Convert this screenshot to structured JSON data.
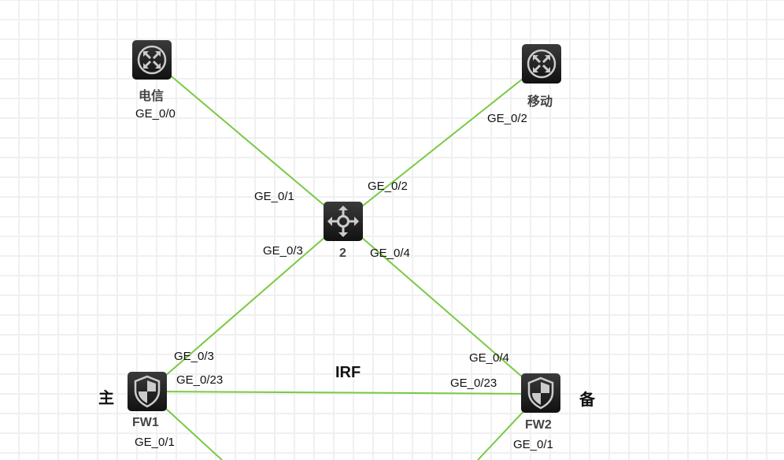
{
  "link_color": "#7ac943",
  "nodes": {
    "telecom": {
      "name": "电信",
      "icon": "router-icon"
    },
    "mobile": {
      "name": "移动",
      "icon": "router-icon"
    },
    "switch": {
      "name": "2",
      "icon": "switch-icon"
    },
    "fw1": {
      "name": "FW1",
      "icon": "firewall-icon",
      "role": "主"
    },
    "fw2": {
      "name": "FW2",
      "icon": "firewall-icon",
      "role": "备"
    }
  },
  "ports": {
    "telecom": "GE_0/0",
    "mobile": "GE_0/2",
    "sw_to_telecom": "GE_0/1",
    "sw_to_mobile": "GE_0/2",
    "sw_to_fw1": "GE_0/3",
    "sw_to_fw2": "GE_0/4",
    "fw1_up": "GE_0/3",
    "fw1_irf": "GE_0/23",
    "fw1_down": "GE_0/1",
    "fw2_up": "GE_0/4",
    "fw2_irf": "GE_0/23",
    "fw2_down": "GE_0/1"
  },
  "irf_label": "IRF"
}
